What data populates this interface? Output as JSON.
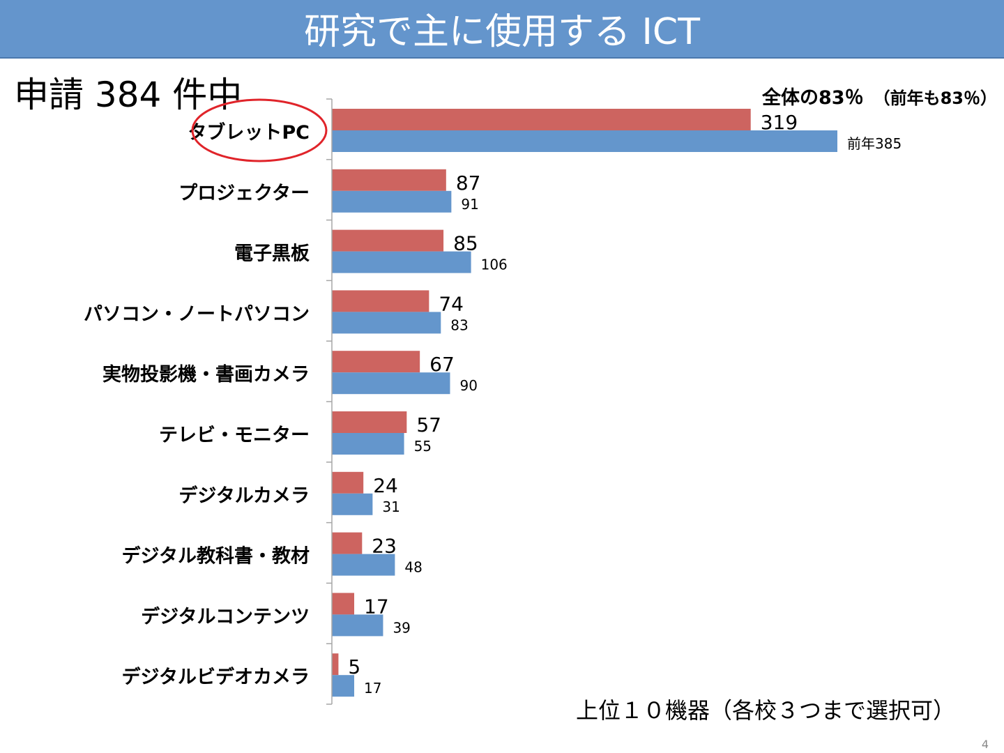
{
  "slide": {
    "title": "研究で主に使用する ICT",
    "subtitle": "申請 384 件中",
    "total_note": "全体の83％",
    "total_note_prev": "（前年も83％）",
    "footnote": "上位１０機器（各校３つまで選択可）",
    "page_number": "4"
  },
  "colors": {
    "title_bar": "#6495cc",
    "current_bar": "#cd6460",
    "previous_bar": "#6496cc",
    "highlight_circle": "#e0242a"
  },
  "chart_data": {
    "type": "bar",
    "orientation": "horizontal",
    "categories": [
      "タブレットPC",
      "プロジェクター",
      "電子黒板",
      "パソコン・ノートパソコン",
      "実物投影機・書画カメラ",
      "テレビ・モニター",
      "デジタルカメラ",
      "デジタル教科書・教材",
      "デジタルコンテンツ",
      "デジタルビデオカメラ"
    ],
    "series": [
      {
        "values": [
          319,
          87,
          85,
          74,
          67,
          57,
          24,
          23,
          17,
          5
        ]
      },
      {
        "values": [
          385,
          91,
          106,
          83,
          90,
          55,
          31,
          48,
          39,
          17
        ]
      }
    ],
    "data_labels_current": [
      "319",
      "87",
      "85",
      "74",
      "67",
      "57",
      "24",
      "23",
      "17",
      "5"
    ],
    "data_labels_previous": [
      "前年385",
      "91",
      "106",
      "83",
      "90",
      "55",
      "31",
      "48",
      "39",
      "17"
    ],
    "highlighted_category": "タブレットPC",
    "xlim": [
      0,
      385
    ],
    "grid": false,
    "legend": "none"
  }
}
